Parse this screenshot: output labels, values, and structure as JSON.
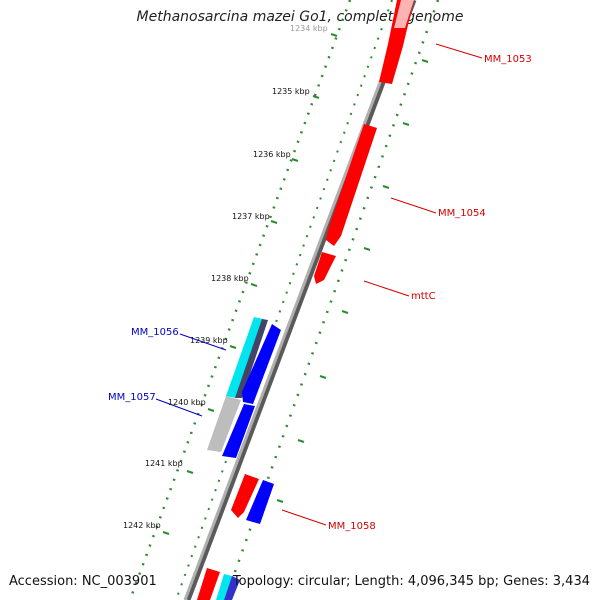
{
  "title": "Methanosarcina mazei Go1, complete genome",
  "footer": {
    "accession": "Accession: NC_003901",
    "summary": "Topology: circular; Length: 4,096,345 bp; Genes: 3,434"
  },
  "colors": {
    "backbone": "#8a8a8a",
    "tick_green": "#2e8b2e",
    "forward_gene": "#ff0000",
    "reverse_gene": "#0000ff",
    "cyan_gene": "#00e5ee",
    "gray_gene": "#bdbdbd",
    "label_red": "#d40000",
    "label_blue": "#0000c8"
  },
  "scale_labels": [
    "1234 kbp",
    "1235 kbp",
    "1236 kbp",
    "1237 kbp",
    "1238 kbp",
    "1239 kbp",
    "1240 kbp",
    "1241 kbp",
    "1242 kbp"
  ],
  "gene_labels": [
    {
      "text": "MM_1053",
      "strand": "forward"
    },
    {
      "text": "MM_1054",
      "strand": "forward"
    },
    {
      "text": "mttC",
      "strand": "forward"
    },
    {
      "text": "MM_1056",
      "strand": "reverse"
    },
    {
      "text": "MM_1057",
      "strand": "reverse"
    },
    {
      "text": "MM_1058",
      "strand": "forward"
    }
  ]
}
